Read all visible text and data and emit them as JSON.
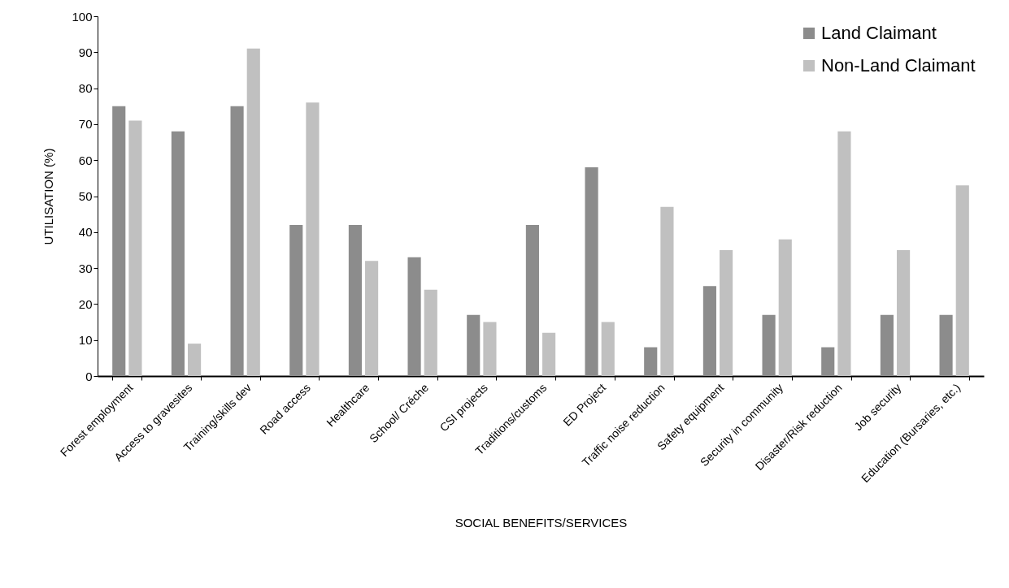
{
  "chart_data": {
    "type": "bar",
    "xlabel": "SOCIAL BENEFITS/SERVICES",
    "ylabel": "UTILISATION (%)",
    "categories": [
      "Forest employment",
      "Access to gravesites",
      "Training/skills dev",
      "Road access",
      "Healthcare",
      "School/ Créche",
      "CSI projects",
      "Traditions/customs",
      "ED Project",
      "Traffic noise reduction",
      "Safety equipment",
      "Security in community",
      "Disaster/Risk reduction",
      "Job security",
      "Education (Bursaries, etc.)"
    ],
    "series": [
      {
        "name": "Land Claimant",
        "color": "#8c8c8c",
        "values": [
          75,
          68,
          75,
          42,
          42,
          33,
          17,
          42,
          58,
          8,
          25,
          17,
          8,
          17,
          17
        ]
      },
      {
        "name": "Non-Land Claimant",
        "color": "#c0c0c0",
        "values": [
          71,
          9,
          91,
          76,
          32,
          24,
          15,
          12,
          15,
          47,
          35,
          38,
          68,
          35,
          53
        ]
      }
    ],
    "ylim": [
      0,
      100
    ],
    "yticks": [
      0,
      10,
      20,
      30,
      40,
      50,
      60,
      70,
      80,
      90,
      100
    ],
    "grid": false,
    "legend": "top right"
  }
}
